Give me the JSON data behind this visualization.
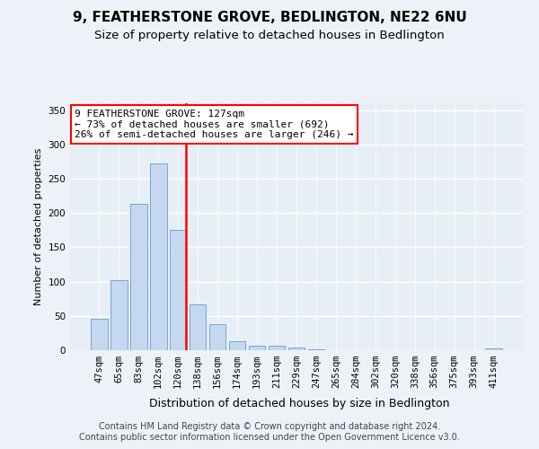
{
  "title": "9, FEATHERSTONE GROVE, BEDLINGTON, NE22 6NU",
  "subtitle": "Size of property relative to detached houses in Bedlington",
  "xlabel": "Distribution of detached houses by size in Bedlington",
  "ylabel": "Number of detached properties",
  "categories": [
    "47sqm",
    "65sqm",
    "83sqm",
    "102sqm",
    "120sqm",
    "138sqm",
    "156sqm",
    "174sqm",
    "193sqm",
    "211sqm",
    "229sqm",
    "247sqm",
    "265sqm",
    "284sqm",
    "302sqm",
    "320sqm",
    "338sqm",
    "356sqm",
    "375sqm",
    "393sqm",
    "411sqm"
  ],
  "values": [
    46,
    102,
    214,
    272,
    175,
    67,
    38,
    13,
    7,
    7,
    4,
    1,
    0,
    0,
    0,
    0,
    0,
    0,
    0,
    0,
    2
  ],
  "bar_color": "#c5d8f0",
  "bar_edge_color": "#6fa8d6",
  "vline_index": 4,
  "vline_color": "red",
  "annotation_text": "9 FEATHERSTONE GROVE: 127sqm\n← 73% of detached houses are smaller (692)\n26% of semi-detached houses are larger (246) →",
  "annotation_box_color": "white",
  "annotation_box_edge_color": "red",
  "ylim": [
    0,
    360
  ],
  "yticks": [
    0,
    50,
    100,
    150,
    200,
    250,
    300,
    350
  ],
  "footer_line1": "Contains HM Land Registry data © Crown copyright and database right 2024.",
  "footer_line2": "Contains public sector information licensed under the Open Government Licence v3.0.",
  "bg_color": "#eef2f8",
  "plot_bg_color": "#e8eef6",
  "grid_color": "white",
  "title_fontsize": 11,
  "subtitle_fontsize": 9.5,
  "xlabel_fontsize": 9,
  "ylabel_fontsize": 8,
  "tick_fontsize": 7.5,
  "footer_fontsize": 7,
  "annotation_fontsize": 8
}
